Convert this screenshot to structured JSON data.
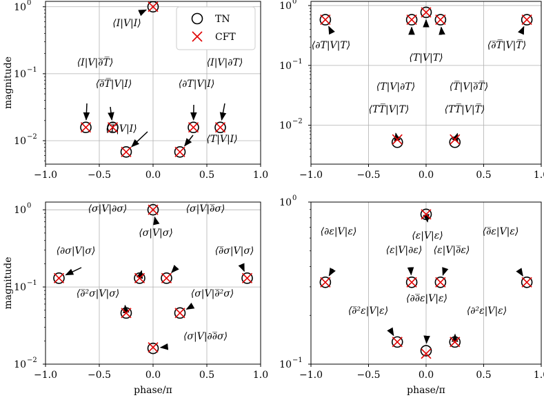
{
  "chart_data": [
    {
      "type": "scatter",
      "ylabel": "magnitude",
      "xlabel": "",
      "xlim": [
        -1,
        1
      ],
      "ylim_log10": [
        -2.35,
        0.08
      ],
      "yscale": "log",
      "grid": true,
      "xticks": [
        "−1.0",
        "−0.5",
        "0.0",
        "0.5",
        "1.0"
      ],
      "yticks": [
        {
          "exp": "0"
        },
        {
          "exp": "−1"
        },
        {
          "exp": "−2"
        }
      ],
      "legend": {
        "position": "top-right",
        "entries": [
          "TN",
          "CFT"
        ]
      },
      "series": [
        {
          "name": "TN",
          "marker": "circle",
          "points": [
            [
              0,
              1.0
            ],
            [
              -0.625,
              0.0158
            ],
            [
              -0.375,
              0.0158
            ],
            [
              0.375,
              0.0158
            ],
            [
              0.625,
              0.0158
            ],
            [
              -0.25,
              0.0068
            ],
            [
              0.25,
              0.0068
            ]
          ]
        },
        {
          "name": "CFT",
          "marker": "x",
          "points": [
            [
              0,
              1.0
            ],
            [
              -0.625,
              0.0158
            ],
            [
              -0.375,
              0.0158
            ],
            [
              0.375,
              0.0158
            ],
            [
              0.625,
              0.0158
            ],
            [
              -0.25,
              0.0068
            ],
            [
              0.25,
              0.0068
            ]
          ]
        }
      ],
      "annotations": [
        {
          "text": "⟨I|V|I⟩",
          "point": [
            0,
            1.0
          ]
        },
        {
          "text": "⟨I|V|∂̅T̅⟩",
          "point": [
            -0.625,
            0.0158
          ]
        },
        {
          "text": "⟨∂̅T̅|V|I⟩",
          "point": [
            -0.375,
            0.0158
          ]
        },
        {
          "text": "⟨∂T|V|I⟩",
          "point": [
            0.375,
            0.0158
          ]
        },
        {
          "text": "⟨I|V|∂T⟩",
          "point": [
            0.625,
            0.0158
          ]
        },
        {
          "text": "⟨T̅|V|I⟩",
          "point": [
            -0.25,
            0.0068
          ]
        },
        {
          "text": "⟨T|V|I⟩",
          "point": [
            0.25,
            0.0068
          ]
        }
      ]
    },
    {
      "type": "scatter",
      "ylabel": "",
      "xlabel": "",
      "xlim": [
        -1,
        1
      ],
      "ylim_log10": [
        -2.65,
        0.07
      ],
      "yscale": "log",
      "grid": true,
      "xticks": [
        "−1.0",
        "−0.5",
        "0.0",
        "0.5",
        "1.0"
      ],
      "yticks": [
        {
          "exp": "0"
        },
        {
          "exp": "−1"
        },
        {
          "exp": "−2"
        }
      ],
      "series": [
        {
          "name": "TN",
          "marker": "circle",
          "points": [
            [
              -0.875,
              0.58
            ],
            [
              -0.125,
              0.58
            ],
            [
              0,
              0.77
            ],
            [
              0.125,
              0.58
            ],
            [
              0.875,
              0.58
            ],
            [
              -0.25,
              0.0052
            ],
            [
              0.25,
              0.0052
            ]
          ]
        },
        {
          "name": "CFT",
          "marker": "x",
          "points": [
            [
              -0.875,
              0.58
            ],
            [
              -0.125,
              0.58
            ],
            [
              0,
              0.77
            ],
            [
              0.125,
              0.58
            ],
            [
              0.875,
              0.58
            ],
            [
              -0.25,
              0.0058
            ],
            [
              0.25,
              0.0058
            ]
          ]
        }
      ],
      "annotations": [
        {
          "text": "⟨∂T|V|T⟩",
          "point": [
            -0.875,
            0.58
          ]
        },
        {
          "text": "⟨T|V|T⟩",
          "point": [
            0,
            0.77
          ]
        },
        {
          "text": "⟨∂̅T̅|V|T̅⟩",
          "point": [
            0.875,
            0.58
          ]
        },
        {
          "text": "⟨T|V|∂T⟩",
          "point": [
            -0.125,
            0.58
          ]
        },
        {
          "text": "⟨T̅|V|∂̅T̅⟩",
          "point": [
            0.125,
            0.58
          ]
        },
        {
          "text": "⟨TT̅|V|T⟩",
          "point": [
            -0.25,
            0.0055
          ]
        },
        {
          "text": "⟨TT̅|V|T̅⟩",
          "point": [
            0.25,
            0.0055
          ]
        }
      ]
    },
    {
      "type": "scatter",
      "ylabel": "magnitude",
      "xlabel": "phase/π",
      "xlim": [
        -1,
        1
      ],
      "ylim_log10": [
        -2.0,
        0.1
      ],
      "yscale": "log",
      "grid": true,
      "xticks": [
        "−1.0",
        "−0.5",
        "0.0",
        "0.5",
        "1.0"
      ],
      "yticks": [
        {
          "exp": "0"
        },
        {
          "exp": "−1"
        },
        {
          "exp": "−2"
        }
      ],
      "series": [
        {
          "name": "TN",
          "marker": "circle",
          "points": [
            [
              0,
              1.0
            ],
            [
              -0.875,
              0.13
            ],
            [
              -0.125,
              0.13
            ],
            [
              0.125,
              0.13
            ],
            [
              0.875,
              0.13
            ],
            [
              -0.25,
              0.046
            ],
            [
              0.25,
              0.046
            ],
            [
              0,
              0.016
            ]
          ]
        },
        {
          "name": "CFT",
          "marker": "x",
          "points": [
            [
              0,
              1.0
            ],
            [
              -0.875,
              0.13
            ],
            [
              -0.125,
              0.13
            ],
            [
              0.125,
              0.13
            ],
            [
              0.875,
              0.13
            ],
            [
              -0.25,
              0.046
            ],
            [
              0.25,
              0.046
            ],
            [
              0,
              0.0165
            ]
          ]
        }
      ],
      "annotations": [
        {
          "text": "⟨σ|V|∂σ⟩",
          "point": [
            -0.125,
            0.13
          ]
        },
        {
          "text": "⟨σ|V|∂̅σ⟩",
          "point": [
            0.125,
            0.13
          ]
        },
        {
          "text": "⟨σ|V|σ⟩",
          "point": [
            0,
            1.0
          ]
        },
        {
          "text": "⟨∂σ|V|σ⟩",
          "point": [
            -0.875,
            0.13
          ]
        },
        {
          "text": "⟨∂̅σ|V|σ⟩",
          "point": [
            0.875,
            0.13
          ]
        },
        {
          "text": "⟨∂̅²σ|V|σ⟩",
          "point": [
            -0.25,
            0.046
          ]
        },
        {
          "text": "⟨σ|V|∂̅²σ⟩",
          "point": [
            0.25,
            0.046
          ]
        },
        {
          "text": "⟨σ|V|∂∂̅σ⟩",
          "point": [
            0,
            0.016
          ]
        }
      ]
    },
    {
      "type": "scatter",
      "ylabel": "",
      "xlabel": "phase/π",
      "xlim": [
        -1,
        1
      ],
      "ylim_log10": [
        -1.0,
        0.0
      ],
      "yscale": "log",
      "grid": true,
      "xticks": [
        "−1.0",
        "−0.5",
        "0.0",
        "0.5",
        "1.0"
      ],
      "yticks": [
        {
          "exp": "0"
        },
        {
          "exp": "−1"
        }
      ],
      "series": [
        {
          "name": "TN",
          "marker": "circle",
          "points": [
            [
              0,
              0.84
            ],
            [
              -0.875,
              0.32
            ],
            [
              -0.125,
              0.32
            ],
            [
              0.125,
              0.32
            ],
            [
              0.875,
              0.32
            ],
            [
              -0.25,
              0.137
            ],
            [
              0.25,
              0.137
            ],
            [
              0,
              0.121
            ]
          ]
        },
        {
          "name": "CFT",
          "marker": "x",
          "points": [
            [
              0,
              0.84
            ],
            [
              -0.875,
              0.32
            ],
            [
              -0.125,
              0.32
            ],
            [
              0.125,
              0.32
            ],
            [
              0.875,
              0.32
            ],
            [
              -0.25,
              0.137
            ],
            [
              0.25,
              0.137
            ],
            [
              0,
              0.116
            ]
          ]
        }
      ],
      "annotations": [
        {
          "text": "⟨ε|V|ε⟩",
          "point": [
            0,
            0.84
          ]
        },
        {
          "text": "⟨∂ε|V|ε⟩",
          "point": [
            -0.875,
            0.32
          ]
        },
        {
          "text": "⟨ε|V|∂ε⟩",
          "point": [
            -0.125,
            0.32
          ]
        },
        {
          "text": "⟨ε|V|∂̅ε⟩",
          "point": [
            0.125,
            0.32
          ]
        },
        {
          "text": "⟨∂̅ε|V|ε⟩",
          "point": [
            0.875,
            0.32
          ]
        },
        {
          "text": "⟨∂∂̅ε|V|ε⟩",
          "point": [
            0,
            0.121
          ]
        },
        {
          "text": "⟨∂̅²ε|V|ε⟩",
          "point": [
            -0.25,
            0.137
          ]
        },
        {
          "text": "⟨∂²ε|V|ε⟩",
          "point": [
            0.25,
            0.137
          ]
        }
      ]
    }
  ]
}
